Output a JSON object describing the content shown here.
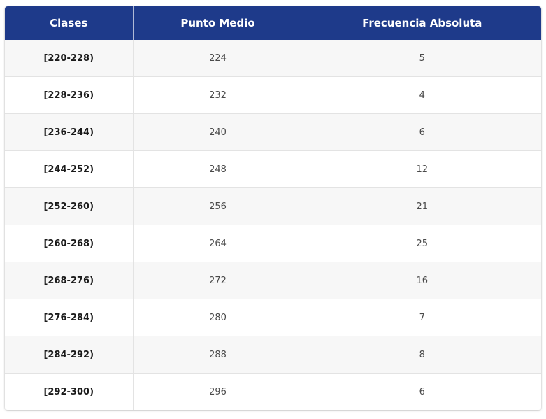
{
  "table": {
    "headers": [
      "Clases",
      "Punto Medio",
      "Frecuencia Absoluta"
    ],
    "rows": [
      {
        "clase": "[220-228)",
        "punto_medio": "224",
        "frecuencia": "5"
      },
      {
        "clase": "[228-236)",
        "punto_medio": "232",
        "frecuencia": "4"
      },
      {
        "clase": "[236-244)",
        "punto_medio": "240",
        "frecuencia": "6"
      },
      {
        "clase": "[244-252)",
        "punto_medio": "248",
        "frecuencia": "12"
      },
      {
        "clase": "[252-260)",
        "punto_medio": "256",
        "frecuencia": "21"
      },
      {
        "clase": "[260-268)",
        "punto_medio": "264",
        "frecuencia": "25"
      },
      {
        "clase": "[268-276)",
        "punto_medio": "272",
        "frecuencia": "16"
      },
      {
        "clase": "[276-284)",
        "punto_medio": "280",
        "frecuencia": "7"
      },
      {
        "clase": "[284-292)",
        "punto_medio": "288",
        "frecuencia": "8"
      },
      {
        "clase": "[292-300)",
        "punto_medio": "296",
        "frecuencia": "6"
      }
    ]
  },
  "colors": {
    "header_background": "#1e3a8a",
    "header_text": "#ffffff",
    "row_alt_background": "#f7f7f7"
  }
}
